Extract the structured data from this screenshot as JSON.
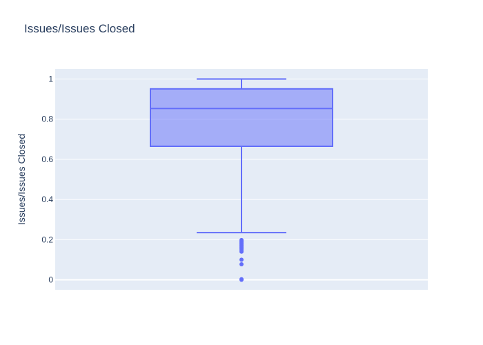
{
  "chart_data": {
    "type": "box",
    "title": "Issues/Issues Closed",
    "xlabel": "",
    "ylabel": "Issues/Issues Closed",
    "ylim": [
      -0.05,
      1.05
    ],
    "yticks": [
      0,
      0.2,
      0.4,
      0.6,
      0.8,
      1
    ],
    "ytick_labels": [
      "0",
      "0.2",
      "0.4",
      "0.6",
      "0.8",
      "1"
    ],
    "grid": true,
    "box": {
      "lower_fence": 0.235,
      "q1": 0.665,
      "median": 0.853,
      "q3": 0.951,
      "upper_fence": 1.0,
      "outliers": [
        0.198,
        0.193,
        0.188,
        0.183,
        0.178,
        0.172,
        0.167,
        0.161,
        0.155,
        0.148,
        0.14,
        0.1,
        0.077,
        0.003,
        0.0
      ]
    },
    "colors": {
      "line": "#636efa",
      "fill": "rgba(99,110,250,0.5)",
      "plot_bg": "#e5ecf6",
      "grid": "#ffffff",
      "text": "#2a3f5f"
    }
  }
}
